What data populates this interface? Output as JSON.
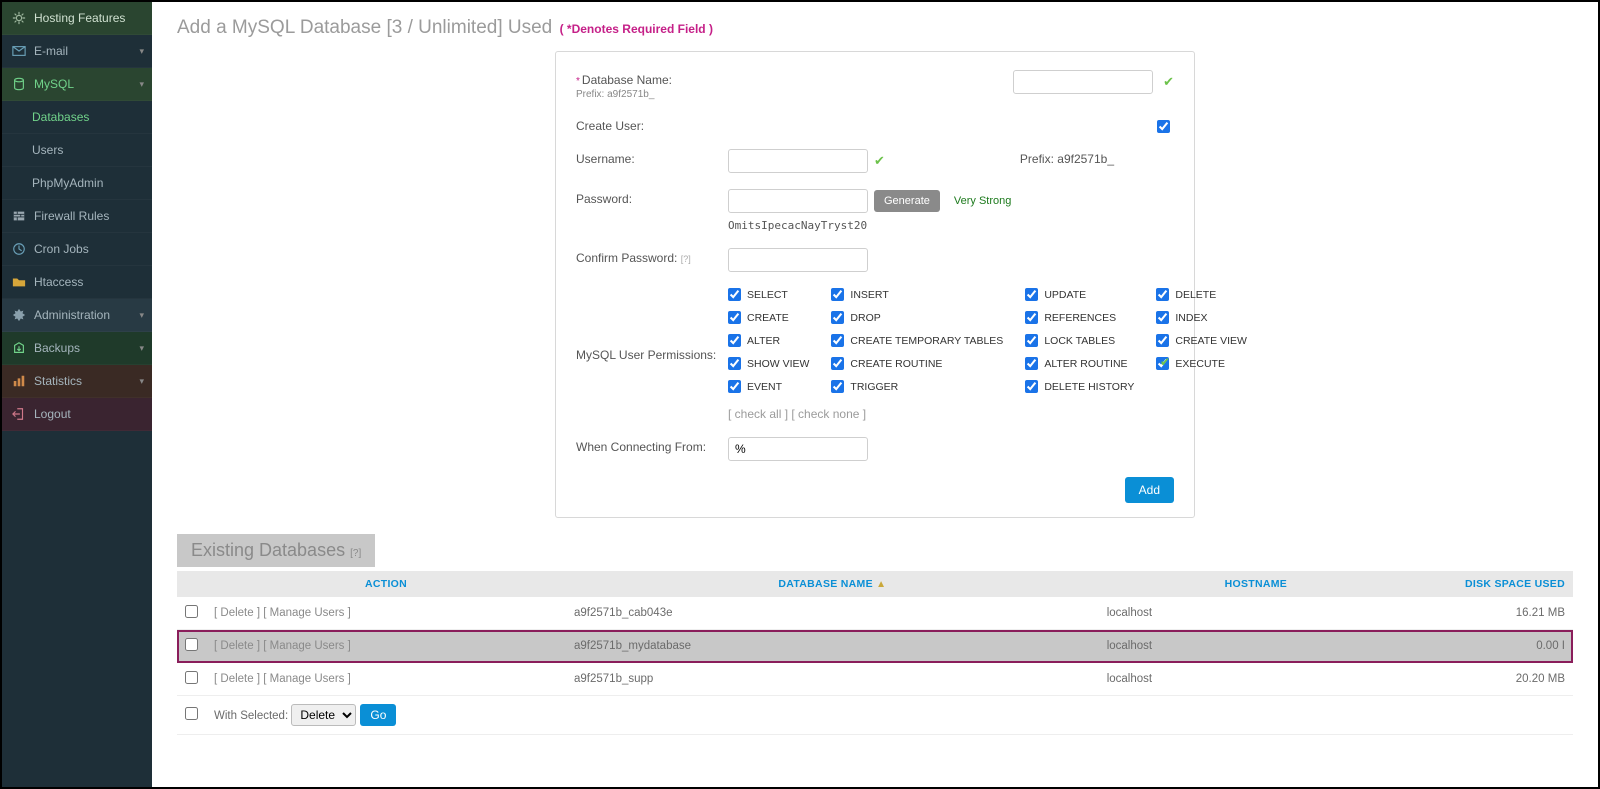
{
  "sidebar": {
    "top": "Hosting Features",
    "items": [
      {
        "label": "E-mail",
        "icon": "mail",
        "caret": true
      },
      {
        "label": "MySQL",
        "icon": "db",
        "caret": true,
        "selected": true,
        "subs": [
          {
            "label": "Databases",
            "active": true
          },
          {
            "label": "Users"
          },
          {
            "label": "PhpMyAdmin"
          }
        ]
      },
      {
        "label": "Firewall Rules",
        "icon": "firewall"
      },
      {
        "label": "Cron Jobs",
        "icon": "clock"
      },
      {
        "label": "Htaccess",
        "icon": "folder"
      },
      {
        "label": "Administration",
        "icon": "admin",
        "caret": true,
        "shade": "#283a44"
      },
      {
        "label": "Backups",
        "icon": "backup",
        "caret": true,
        "shade": "#1f3a2a"
      },
      {
        "label": "Statistics",
        "icon": "stats",
        "caret": true,
        "shade": "#3a2a24"
      },
      {
        "label": "Logout",
        "icon": "logout",
        "shade": "#3a2430"
      }
    ]
  },
  "page": {
    "title": "Add a MySQL Database [3 / Unlimited] Used",
    "required_note": "( *Denotes Required Field )"
  },
  "form": {
    "db_name_label": "Database Name:",
    "db_prefix_label": "Prefix: a9f2571b_",
    "create_user_label": "Create User:",
    "create_user_checked": true,
    "username_label": "Username:",
    "username_prefix": "Prefix:  a9f2571b_",
    "password_label": "Password:",
    "generate_label": "Generate",
    "strength": "Very Strong",
    "generated_password": "OmitsIpecacNayTryst20",
    "confirm_label": "Confirm Password:",
    "confirm_q": "[?]",
    "perms_label": "MySQL User Permissions:",
    "permissions": [
      "SELECT",
      "INSERT",
      "UPDATE",
      "DELETE",
      "CREATE",
      "DROP",
      "REFERENCES",
      "INDEX",
      "ALTER",
      "CREATE TEMPORARY TABLES",
      "LOCK TABLES",
      "CREATE VIEW",
      "SHOW VIEW",
      "CREATE ROUTINE",
      "ALTER ROUTINE",
      "EXECUTE",
      "EVENT",
      "TRIGGER",
      "DELETE HISTORY"
    ],
    "check_all": "[ check all ]",
    "check_none": "[ check none ]",
    "connect_from_label": "When Connecting From:",
    "connect_from_value": "%",
    "add_button": "Add"
  },
  "existing": {
    "heading": "Existing Databases",
    "heading_q": "[?]",
    "columns": {
      "action": "ACTION",
      "dbname": "DATABASE NAME",
      "host": "HOSTNAME",
      "disk": "DISK SPACE USED"
    },
    "row_actions": {
      "delete": "[ Delete ]",
      "manage": "[ Manage Users ]"
    },
    "rows": [
      {
        "db": "a9f2571b_cab043e",
        "host": "localhost",
        "disk": "16.21 MB",
        "hl": false
      },
      {
        "db": "a9f2571b_mydatabase",
        "host": "localhost",
        "disk": "0.00 I",
        "hl": true
      },
      {
        "db": "a9f2571b_supp",
        "host": "localhost",
        "disk": "20.20 MB",
        "hl": false
      }
    ],
    "bulk": {
      "label": "With Selected:",
      "option": "Delete",
      "go": "Go"
    }
  }
}
